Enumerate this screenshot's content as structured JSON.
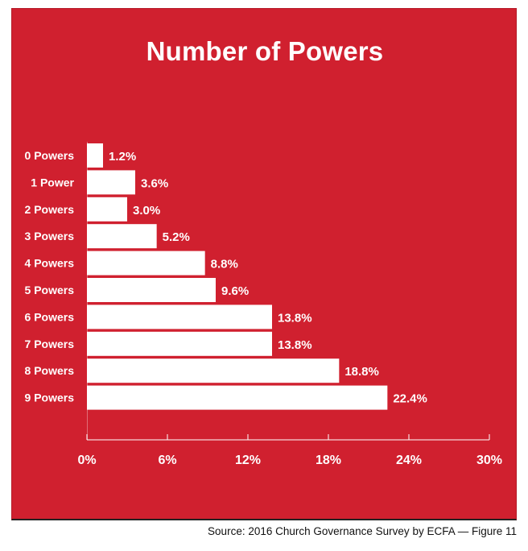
{
  "colors": {
    "panel": "#d0202f",
    "bar": "#ffffff",
    "text": "#ffffff"
  },
  "chart_data": {
    "type": "bar",
    "orientation": "horizontal",
    "title": "Number of Powers",
    "categories": [
      "0 Powers",
      "1 Power",
      "2 Powers",
      "3 Powers",
      "4 Powers",
      "5 Powers",
      "6 Powers",
      "7 Powers",
      "8 Powers",
      "9 Powers"
    ],
    "values": [
      1.2,
      3.6,
      3.0,
      5.2,
      8.8,
      9.6,
      13.8,
      13.8,
      18.8,
      22.4
    ],
    "value_labels": [
      "1.2%",
      "3.6%",
      "3.0%",
      "5.2%",
      "8.8%",
      "9.6%",
      "13.8%",
      "13.8%",
      "18.8%",
      "22.4%"
    ],
    "x_ticks": [
      0,
      6,
      12,
      18,
      24,
      30
    ],
    "x_tick_labels": [
      "0%",
      "6%",
      "12%",
      "18%",
      "24%",
      "30%"
    ],
    "xlim": [
      0,
      30
    ],
    "grid": false,
    "legend": "none"
  },
  "footer": {
    "source": "Source: 2016 Church Governance Survey by ECFA — Figure 11"
  }
}
